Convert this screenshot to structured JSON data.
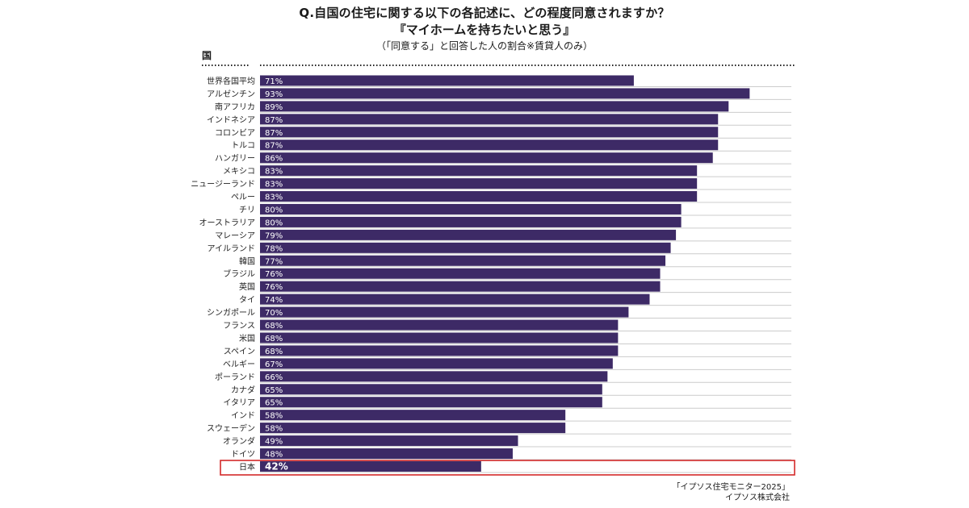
{
  "header": {
    "title": "Q.自国の住宅に関する以下の各記述に、どの程度同意されますか？",
    "subtitle": "『マイホームを持ちたいと思う』",
    "note": "（「同意する」と回答した人の割合※賃貸人のみ）"
  },
  "axis_header": "国",
  "footer": {
    "line1": "「イプソス住宅モニター2025」",
    "line2": "イプソス株式会社"
  },
  "colors": {
    "bar": "#3d2a66",
    "highlight_border": "#d42a2a",
    "divider": "#cccccc",
    "bar_label": "#ffffff"
  },
  "chart_data": {
    "type": "bar",
    "orientation": "horizontal",
    "categories": [
      "世界各国平均",
      "アルゼンチン",
      "南アフリカ",
      "インドネシア",
      "コロンビア",
      "トルコ",
      "ハンガリー",
      "メキシコ",
      "ニュージーランド",
      "ペルー",
      "チリ",
      "オーストラリア",
      "マレーシア",
      "アイルランド",
      "韓国",
      "ブラジル",
      "英国",
      "タイ",
      "シンガポール",
      "フランス",
      "米国",
      "スペイン",
      "ベルギー",
      "ポーランド",
      "カナダ",
      "イタリア",
      "インド",
      "スウェーデン",
      "オランダ",
      "ドイツ",
      "日本"
    ],
    "values": [
      71,
      93,
      89,
      87,
      87,
      87,
      86,
      83,
      83,
      83,
      80,
      80,
      79,
      78,
      77,
      76,
      76,
      74,
      70,
      68,
      68,
      68,
      67,
      66,
      65,
      65,
      58,
      58,
      49,
      48,
      42
    ],
    "labels": [
      "71%",
      "93%",
      "89%",
      "87%",
      "87%",
      "87%",
      "86%",
      "83%",
      "83%",
      "83%",
      "80%",
      "80%",
      "79%",
      "78%",
      "77%",
      "76%",
      "76%",
      "74%",
      "70%",
      "68%",
      "68%",
      "68%",
      "67%",
      "66%",
      "65%",
      "65%",
      "58%",
      "58%",
      "49%",
      "48%",
      "42%"
    ],
    "highlight": "日本",
    "xlim": [
      0,
      100
    ],
    "grid": false,
    "legend": "none"
  }
}
